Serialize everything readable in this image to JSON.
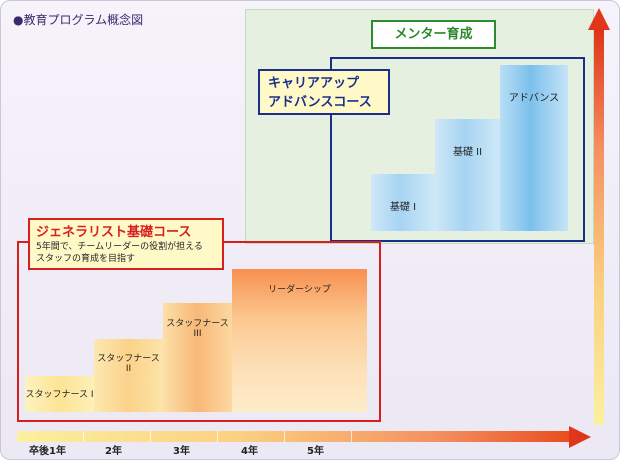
{
  "title": "●教育プログラム概念図",
  "mentor": {
    "label": "メンター育成"
  },
  "career": {
    "line1": "キャリアアップ",
    "line2": "アドバンスコース"
  },
  "blue_steps": [
    "基礎 I",
    "基礎 II",
    "アドバンス"
  ],
  "generalist": {
    "title": "ジェネラリスト基礎コース",
    "desc_line1": "5年間で、チームリーダーの役割が担える",
    "desc_line2": "スタッフの育成を目指す"
  },
  "orange_steps": [
    "スタッフナース I",
    "スタッフナース II",
    "スタッフナース III",
    "リーダーシップ"
  ],
  "timeline": [
    "卒後1年",
    "2年",
    "3年",
    "4年",
    "5年"
  ],
  "colors": {
    "mentor_green": "#2a8a2a",
    "career_blue": "#1a2e8a",
    "generalist_red": "#d81e1e",
    "arrow_red": "#e0361a"
  }
}
